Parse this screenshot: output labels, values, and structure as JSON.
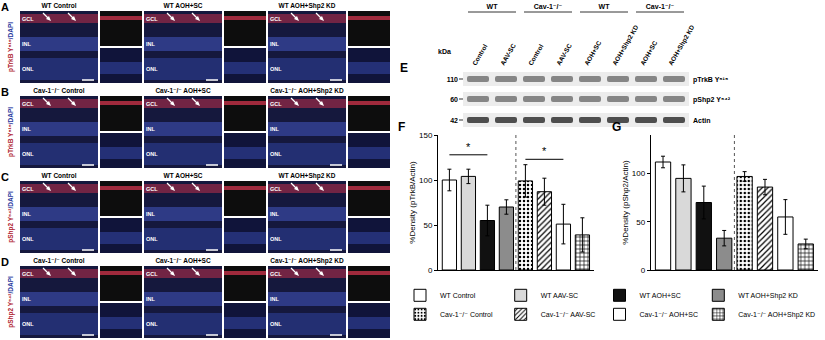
{
  "panels": [
    {
      "letter": "A",
      "stain": "pTrkB Y⁵¹⁵/DAPI",
      "conditions": [
        "WT Control",
        "WT AOH+SC",
        "WT AOH+Shp2 KD"
      ]
    },
    {
      "letter": "B",
      "stain": "pTrkB Y⁵¹⁵/DAPI",
      "conditions": [
        "Cav-1⁻/⁻ Control",
        "Cav-1⁻/⁻ AOH+SC",
        "Cav-1⁻/⁻ AOH+Shp2 KD"
      ]
    },
    {
      "letter": "C",
      "stain": "pShp2 Y⁵⁴²/DAPI",
      "conditions": [
        "WT Control",
        "WT AOH+SC",
        "WT AOH+Shp2 KD"
      ]
    },
    {
      "letter": "D",
      "stain": "pShp2 Y⁵⁴²/DAPI",
      "conditions": [
        "Cav-1⁻/⁻ Control",
        "Cav-1⁻/⁻ AOH+SC",
        "Cav-1⁻/⁻ AOH+Shp2 KD"
      ]
    }
  ],
  "layers": [
    "GCL",
    "INL",
    "ONL"
  ],
  "blot": {
    "letter": "E",
    "unit": "kDa",
    "groups": [
      {
        "label": "WT",
        "lanes": [
          "Control",
          "AAV-SC"
        ]
      },
      {
        "label": "Cav-1⁻/⁻",
        "lanes": [
          "Control",
          "AAV-SC"
        ]
      },
      {
        "label": "WT",
        "lanes": [
          "AOH+SC",
          "AOH+Shp2 KD"
        ]
      },
      {
        "label": "Cav-1⁻/⁻",
        "lanes": [
          "AOH+SC",
          "AOH+Shp2 KD"
        ]
      }
    ],
    "bands": [
      {
        "label": "pTrkB Y⁵¹⁵",
        "kda": 110
      },
      {
        "label": "pShp2 Y⁵⁴²",
        "kda": 60
      },
      {
        "label": "Actin",
        "kda": 42
      }
    ]
  },
  "chart_data": [
    {
      "type": "bar",
      "panel": "F",
      "y_label": "%Density (pTrkB/Actin)",
      "categories": [
        null,
        null,
        null,
        null,
        null,
        null,
        null,
        null
      ],
      "ylim": [
        0,
        150
      ],
      "yticks": [
        0,
        50,
        100,
        150
      ],
      "tick_labels": "y",
      "legend": "bottom",
      "series": [
        {
          "name": "WT Control",
          "color": "#ffffff",
          "marker": "plain",
          "values": [
            100,
            null,
            null,
            null,
            null,
            null,
            null,
            null
          ],
          "errors": [
            12,
            null,
            null,
            null,
            null,
            null,
            null,
            null
          ]
        },
        {
          "name": "WT AAV-SC",
          "color": "#d9d9d9",
          "marker": "plain",
          "values": [
            null,
            104,
            null,
            null,
            null,
            null,
            null,
            null
          ],
          "errors": [
            null,
            8,
            null,
            null,
            null,
            null,
            null,
            null
          ]
        },
        {
          "name": "WT AOH+SC",
          "color": "#111111",
          "marker": "plain",
          "values": [
            null,
            null,
            55,
            null,
            null,
            null,
            null,
            null
          ],
          "errors": [
            null,
            null,
            17,
            null,
            null,
            null,
            null,
            null
          ]
        },
        {
          "name": "WT AOH+Shp2 KD",
          "color": "#8c8c8c",
          "marker": "plain",
          "values": [
            null,
            null,
            null,
            70,
            null,
            null,
            null,
            null
          ],
          "errors": [
            null,
            null,
            null,
            8,
            null,
            null,
            null,
            null
          ]
        },
        {
          "name": "Cav-1⁻/⁻ Control",
          "color": "#ffffff",
          "marker": "dots",
          "values": [
            null,
            null,
            null,
            null,
            99,
            null,
            null,
            null
          ],
          "errors": [
            null,
            null,
            null,
            null,
            18,
            null,
            null,
            null
          ]
        },
        {
          "name": "Cav-1⁻/⁻ AAV-SC",
          "color": "#e6e6e6",
          "marker": "hatch",
          "values": [
            null,
            null,
            null,
            null,
            null,
            87,
            null,
            null
          ],
          "errors": [
            null,
            null,
            null,
            null,
            null,
            15,
            null,
            null
          ]
        },
        {
          "name": "Cav-1⁻/⁻ AOH+SC",
          "color": "#222222",
          "marker": "checks",
          "values": [
            null,
            null,
            null,
            null,
            null,
            null,
            51,
            null
          ],
          "errors": [
            null,
            null,
            null,
            null,
            null,
            null,
            22,
            null
          ]
        },
        {
          "name": "Cav-1⁻/⁻ AOH+Shp2 KD",
          "color": "#8c8c8c",
          "marker": "checks",
          "values": [
            null,
            null,
            null,
            null,
            null,
            null,
            null,
            39
          ],
          "errors": [
            null,
            null,
            null,
            null,
            null,
            null,
            null,
            19
          ]
        }
      ],
      "annotations": [
        {
          "text": "*",
          "from": 0,
          "to": 2,
          "y": 128
        },
        {
          "text": "*",
          "from": 4,
          "to": 6,
          "y": 123
        }
      ]
    },
    {
      "type": "bar",
      "panel": "G",
      "y_label": "%Density (pShp2/Actin)",
      "categories": [
        null,
        null,
        null,
        null,
        null,
        null,
        null,
        null
      ],
      "ylim": [
        0,
        140
      ],
      "yticks": [
        0,
        50,
        100
      ],
      "tick_labels": "y",
      "legend": false,
      "series": [
        {
          "name": "WT Control",
          "color": "#ffffff",
          "marker": "plain",
          "values": [
            112,
            null,
            null,
            null,
            null,
            null,
            null,
            null
          ],
          "errors": [
            6,
            null,
            null,
            null,
            null,
            null,
            null,
            null
          ]
        },
        {
          "name": "WT AAV-SC",
          "color": "#d9d9d9",
          "marker": "plain",
          "values": [
            null,
            95,
            null,
            null,
            null,
            null,
            null,
            null
          ],
          "errors": [
            null,
            14,
            null,
            null,
            null,
            null,
            null,
            null
          ]
        },
        {
          "name": "WT AOH+SC",
          "color": "#111111",
          "marker": "plain",
          "values": [
            null,
            null,
            70,
            null,
            null,
            null,
            null,
            null
          ],
          "errors": [
            null,
            null,
            17,
            null,
            null,
            null,
            null,
            null
          ]
        },
        {
          "name": "WT AOH+Shp2 KD",
          "color": "#8c8c8c",
          "marker": "plain",
          "values": [
            null,
            null,
            null,
            33,
            null,
            null,
            null,
            null
          ],
          "errors": [
            null,
            null,
            null,
            8,
            null,
            null,
            null,
            null
          ]
        },
        {
          "name": "Cav-1⁻/⁻ Control",
          "color": "#ffffff",
          "marker": "dots",
          "values": [
            null,
            null,
            null,
            null,
            97,
            null,
            null,
            null
          ],
          "errors": [
            null,
            null,
            null,
            null,
            5,
            null,
            null,
            null
          ]
        },
        {
          "name": "Cav-1⁻/⁻ AAV-SC",
          "color": "#e6e6e6",
          "marker": "hatch",
          "values": [
            null,
            null,
            null,
            null,
            null,
            86,
            null,
            null
          ],
          "errors": [
            null,
            null,
            null,
            null,
            null,
            8,
            null,
            null
          ]
        },
        {
          "name": "Cav-1⁻/⁻ AOH+SC",
          "color": "#222222",
          "marker": "checks",
          "values": [
            null,
            null,
            null,
            null,
            null,
            null,
            55,
            null
          ],
          "errors": [
            null,
            null,
            null,
            null,
            null,
            null,
            18,
            null
          ]
        },
        {
          "name": "Cav-1⁻/⁻ AOH+Shp2 KD",
          "color": "#8c8c8c",
          "marker": "checks",
          "values": [
            null,
            null,
            null,
            null,
            null,
            null,
            null,
            27
          ],
          "errors": [
            null,
            null,
            null,
            null,
            null,
            null,
            null,
            5
          ]
        }
      ]
    }
  ]
}
